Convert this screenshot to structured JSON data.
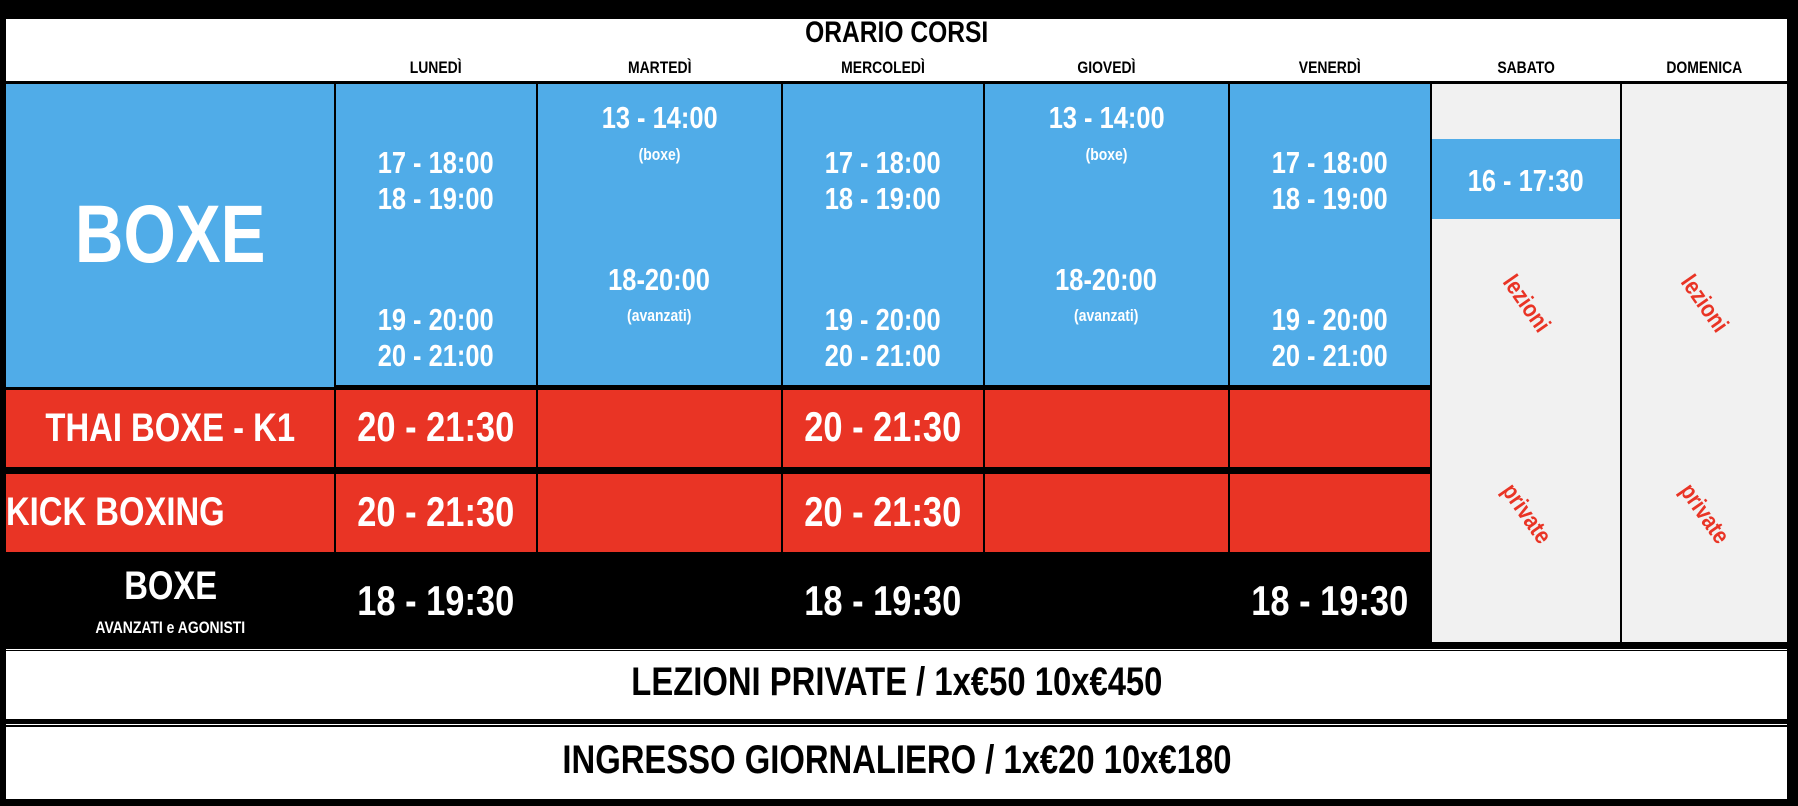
{
  "title": "ORARIO CORSI",
  "days": [
    "LUNEDÌ",
    "MARTEDÌ",
    "MERCOLEDÌ",
    "GIOVEDÌ",
    "VENERDÌ",
    "SABATO",
    "DOMENICA"
  ],
  "colors": {
    "boxe": "#50ace8",
    "red": "#e93425",
    "grey": "#f1f1f1",
    "private_text": "#e93425"
  },
  "boxe": {
    "label": "BOXE",
    "lunedi": [
      "17 - 18:00",
      "18 - 19:00",
      "19 - 20:00",
      "20 - 21:00"
    ],
    "martedi": {
      "t1": "13 - 14:00",
      "n1": "(boxe)",
      "t2": "18-20:00",
      "n2": "(avanzati)"
    },
    "mercoledi": [
      "17 - 18:00",
      "18 - 19:00",
      "19 - 20:00",
      "20 - 21:00"
    ],
    "giovedi": {
      "t1": "13 - 14:00",
      "n1": "(boxe)",
      "t2": "18-20:00",
      "n2": "(avanzati)"
    },
    "venerdi": [
      "17 - 18:00",
      "18 - 19:00",
      "19 - 20:00",
      "20 - 21:00"
    ],
    "sabato": "16 - 17:30"
  },
  "thai": {
    "label": "THAI BOXE - K1",
    "lunedi": "20 - 21:30",
    "mercoledi": "20 - 21:30"
  },
  "kick": {
    "label": "KICK BOXING",
    "lunedi": "20 - 21:30",
    "mercoledi": "20 - 21:30"
  },
  "avanzati": {
    "label": "BOXE",
    "sublabel": "AVANZATI e AGONISTI",
    "lunedi": "18 - 19:30",
    "mercoledi": "18 - 19:30",
    "venerdi": "18 - 19:30"
  },
  "weekend_note": {
    "line1": "lezioni",
    "line2": "private"
  },
  "footer": {
    "private": "LEZIONI PRIVATE  /  1x€50     10x€450",
    "daily": "INGRESSO GIORNALIERO  /  1x€20     10x€180"
  }
}
